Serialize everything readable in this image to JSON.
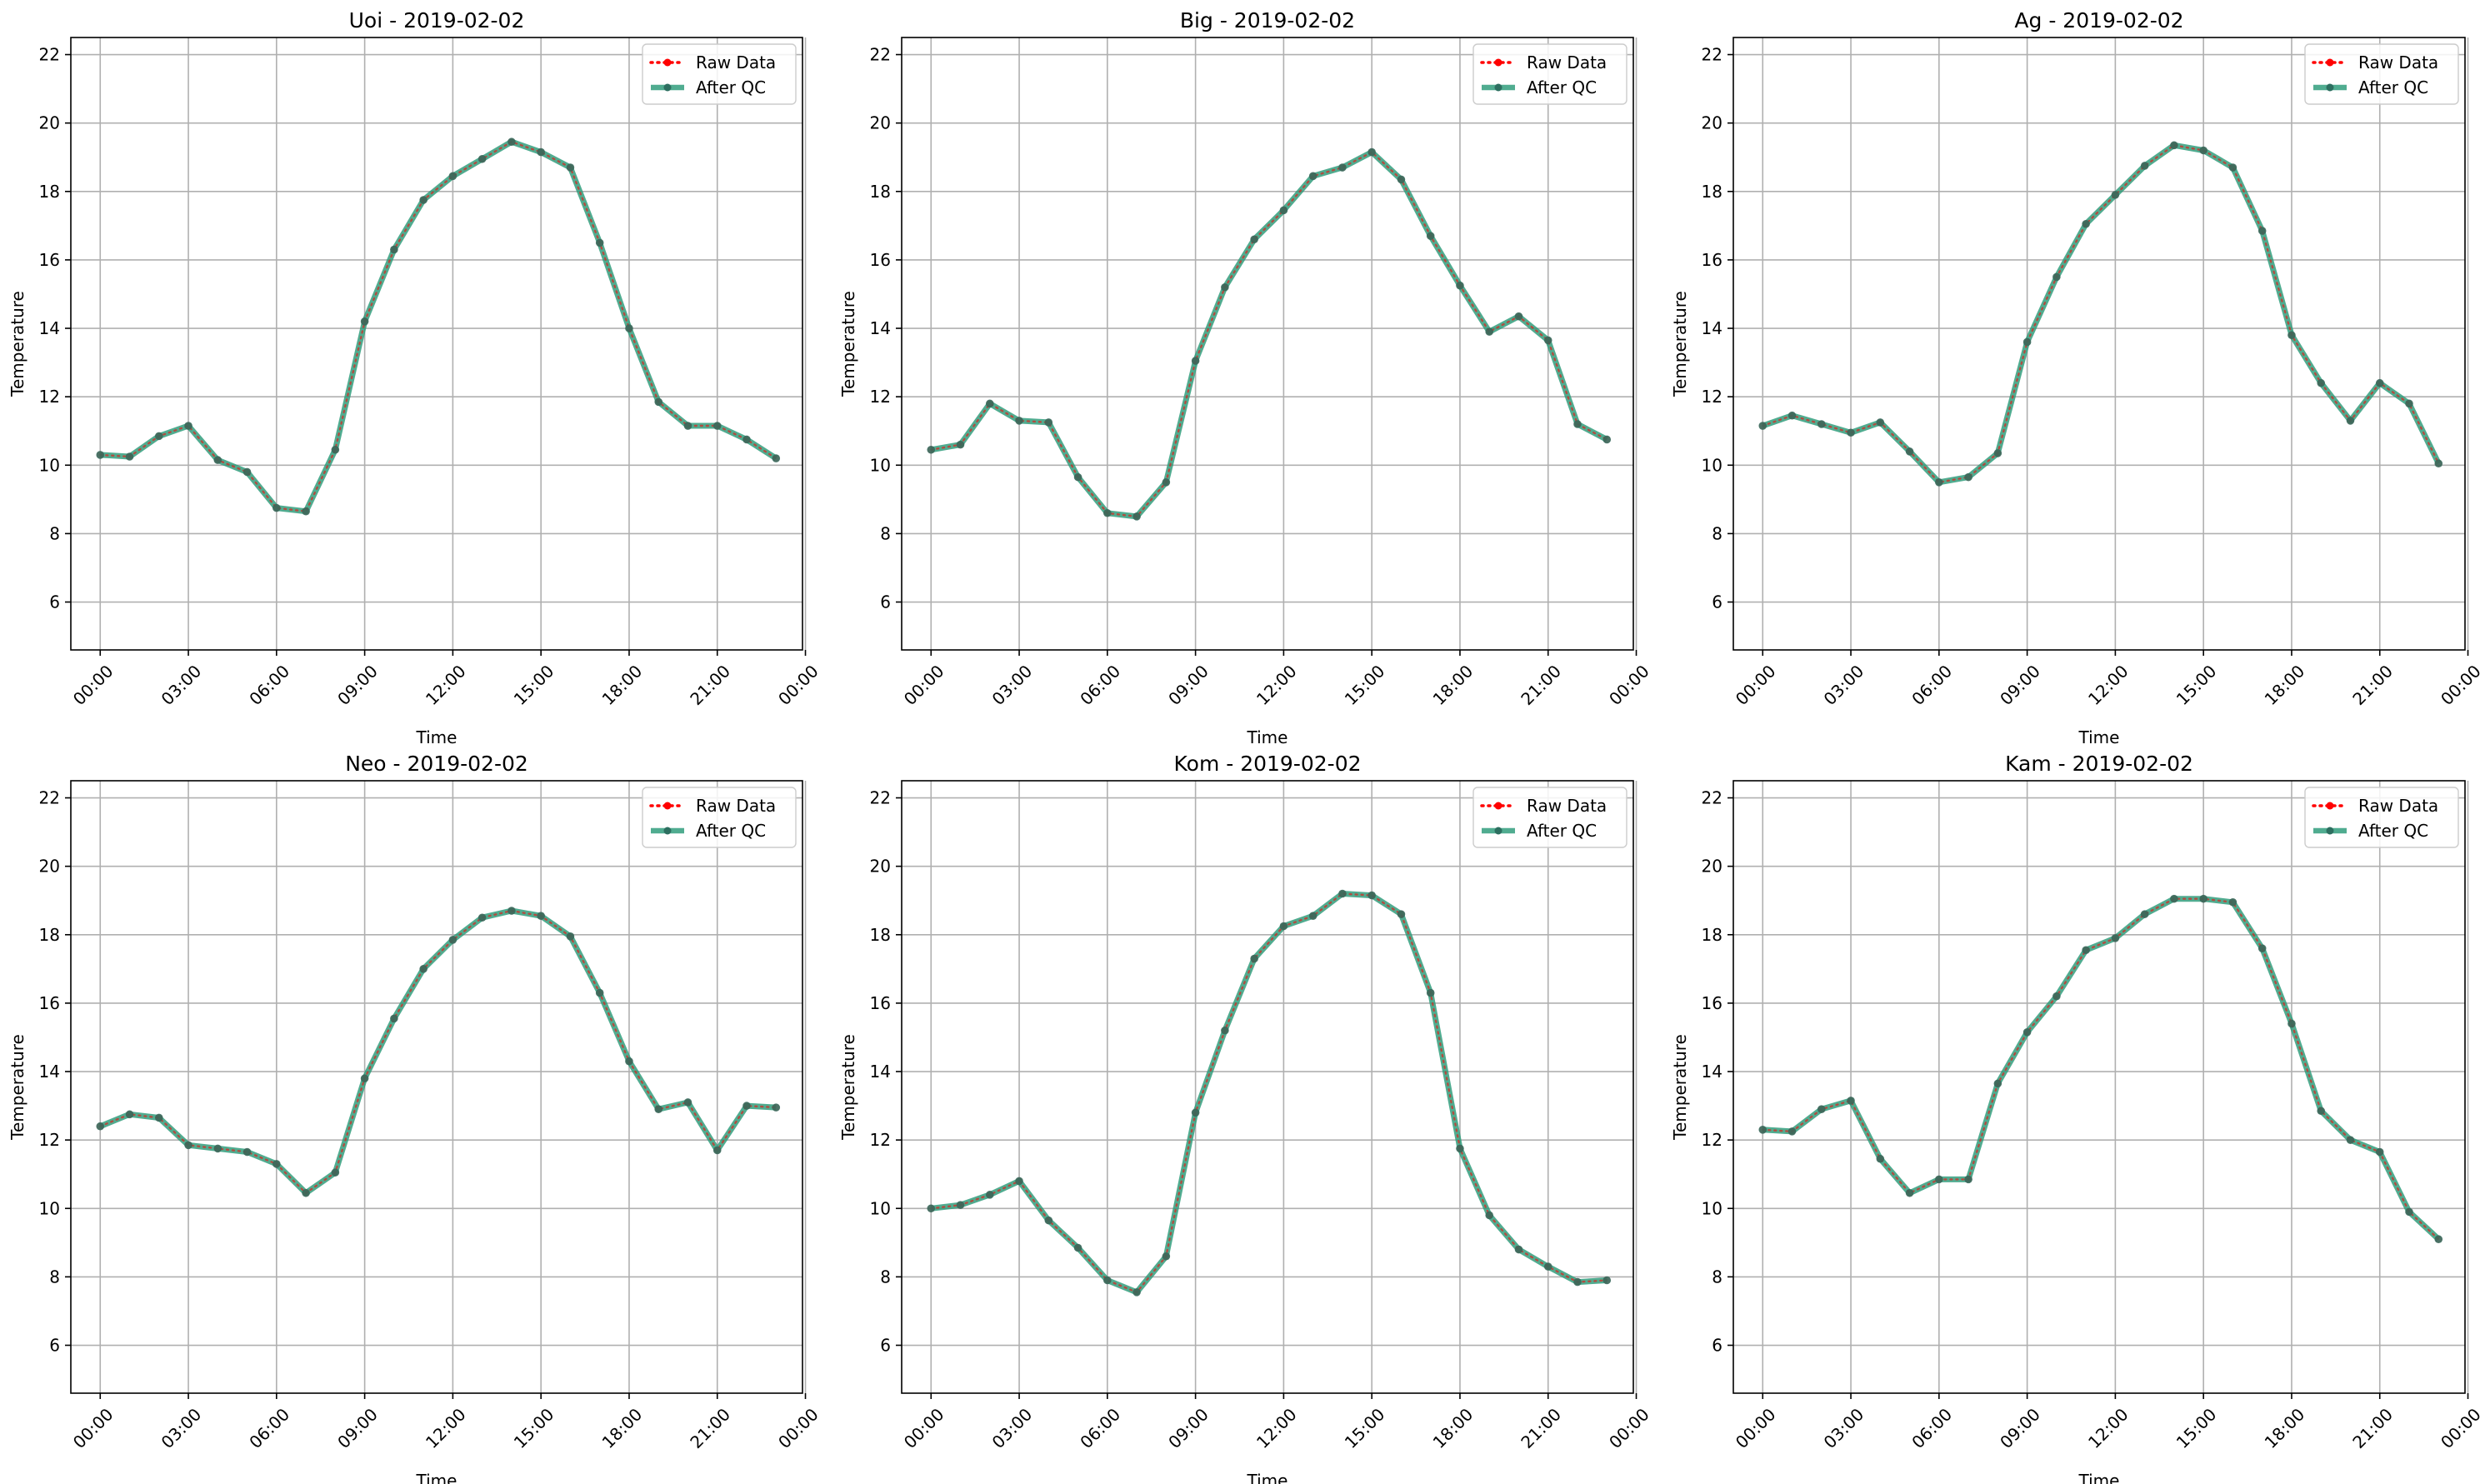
{
  "chart_data": [
    {
      "type": "line",
      "title": "Uoi - 2019-02-02",
      "xlabel": "Time",
      "ylabel": "Temperature",
      "ylim": [
        4.6,
        22.5
      ],
      "yticks": [
        "6",
        "8",
        "10",
        "12",
        "14",
        "16",
        "18",
        "20",
        "22"
      ],
      "xticks": [
        "00:00",
        "03:00",
        "06:00",
        "09:00",
        "12:00",
        "15:00",
        "18:00",
        "21:00",
        "00:00"
      ],
      "grid": true,
      "legend": "top-right",
      "legend_entries": [
        "Raw Data",
        "After QC"
      ],
      "x_hours": [
        0,
        1,
        2,
        3,
        4,
        5,
        6,
        7,
        8,
        9,
        10,
        11,
        12,
        13,
        14,
        15,
        16,
        17,
        18,
        19,
        20,
        21,
        22,
        23
      ],
      "series": [
        {
          "name": "Raw Data",
          "values": [
            10.3,
            10.25,
            10.85,
            11.15,
            10.15,
            9.8,
            8.75,
            8.65,
            10.45,
            14.2,
            16.3,
            17.75,
            18.45,
            18.95,
            19.45,
            19.15,
            18.7,
            16.5,
            14.0,
            11.85,
            11.15,
            11.15,
            10.75,
            10.2
          ]
        },
        {
          "name": "After QC",
          "values": [
            10.3,
            10.25,
            10.85,
            11.15,
            10.15,
            9.8,
            8.75,
            8.65,
            10.45,
            14.2,
            16.3,
            17.75,
            18.45,
            18.95,
            19.45,
            19.15,
            18.7,
            16.5,
            14.0,
            11.85,
            11.15,
            11.15,
            10.75,
            10.2
          ]
        }
      ]
    },
    {
      "type": "line",
      "title": "Big - 2019-02-02",
      "xlabel": "Time",
      "ylabel": "Temperature",
      "ylim": [
        4.6,
        22.5
      ],
      "yticks": [
        "6",
        "8",
        "10",
        "12",
        "14",
        "16",
        "18",
        "20",
        "22"
      ],
      "xticks": [
        "00:00",
        "03:00",
        "06:00",
        "09:00",
        "12:00",
        "15:00",
        "18:00",
        "21:00",
        "00:00"
      ],
      "grid": true,
      "legend": "top-right",
      "legend_entries": [
        "Raw Data",
        "After QC"
      ],
      "x_hours": [
        0,
        1,
        2,
        3,
        4,
        5,
        6,
        7,
        8,
        9,
        10,
        11,
        12,
        13,
        14,
        15,
        16,
        17,
        18,
        19,
        20,
        21,
        22,
        23
      ],
      "series": [
        {
          "name": "Raw Data",
          "values": [
            10.45,
            10.6,
            11.8,
            11.3,
            11.25,
            9.65,
            8.6,
            8.5,
            9.5,
            13.05,
            15.2,
            16.6,
            17.45,
            18.45,
            18.7,
            19.15,
            18.35,
            16.7,
            15.25,
            13.9,
            14.35,
            13.65,
            11.2,
            10.75
          ]
        },
        {
          "name": "After QC",
          "values": [
            10.45,
            10.6,
            11.8,
            11.3,
            11.25,
            9.65,
            8.6,
            8.5,
            9.5,
            13.05,
            15.2,
            16.6,
            17.45,
            18.45,
            18.7,
            19.15,
            18.35,
            16.7,
            15.25,
            13.9,
            14.35,
            13.65,
            11.2,
            10.75
          ]
        }
      ]
    },
    {
      "type": "line",
      "title": "Ag - 2019-02-02",
      "xlabel": "Time",
      "ylabel": "Temperature",
      "ylim": [
        4.6,
        22.5
      ],
      "yticks": [
        "6",
        "8",
        "10",
        "12",
        "14",
        "16",
        "18",
        "20",
        "22"
      ],
      "xticks": [
        "00:00",
        "03:00",
        "06:00",
        "09:00",
        "12:00",
        "15:00",
        "18:00",
        "21:00",
        "00:00"
      ],
      "grid": true,
      "legend": "top-right",
      "legend_entries": [
        "Raw Data",
        "After QC"
      ],
      "x_hours": [
        0,
        1,
        2,
        3,
        4,
        5,
        6,
        7,
        8,
        9,
        10,
        11,
        12,
        13,
        14,
        15,
        16,
        17,
        18,
        19,
        20,
        21,
        22,
        23
      ],
      "series": [
        {
          "name": "Raw Data",
          "values": [
            11.15,
            11.45,
            11.2,
            10.95,
            11.25,
            10.4,
            9.5,
            9.65,
            10.35,
            13.6,
            15.5,
            17.05,
            17.9,
            18.75,
            19.35,
            19.2,
            18.7,
            16.85,
            13.8,
            12.4,
            11.3,
            12.4,
            11.8,
            10.05
          ]
        },
        {
          "name": "After QC",
          "values": [
            11.15,
            11.45,
            11.2,
            10.95,
            11.25,
            10.4,
            9.5,
            9.65,
            10.35,
            13.6,
            15.5,
            17.05,
            17.9,
            18.75,
            19.35,
            19.2,
            18.7,
            16.85,
            13.8,
            12.4,
            11.3,
            12.4,
            11.8,
            10.05
          ]
        }
      ]
    },
    {
      "type": "line",
      "title": "Neo - 2019-02-02",
      "xlabel": "Time",
      "ylabel": "Temperature",
      "ylim": [
        4.6,
        22.5
      ],
      "yticks": [
        "6",
        "8",
        "10",
        "12",
        "14",
        "16",
        "18",
        "20",
        "22"
      ],
      "xticks": [
        "00:00",
        "03:00",
        "06:00",
        "09:00",
        "12:00",
        "15:00",
        "18:00",
        "21:00",
        "00:00"
      ],
      "grid": true,
      "legend": "top-right",
      "legend_entries": [
        "Raw Data",
        "After QC"
      ],
      "x_hours": [
        0,
        1,
        2,
        3,
        4,
        5,
        6,
        7,
        8,
        9,
        10,
        11,
        12,
        13,
        14,
        15,
        16,
        17,
        18,
        19,
        20,
        21,
        22,
        23
      ],
      "series": [
        {
          "name": "Raw Data",
          "values": [
            12.4,
            12.75,
            12.65,
            11.85,
            11.75,
            11.65,
            11.3,
            10.45,
            11.05,
            13.8,
            15.55,
            17.0,
            17.85,
            18.5,
            18.7,
            18.55,
            17.95,
            16.3,
            14.3,
            12.9,
            13.1,
            11.7,
            13.0,
            12.95
          ]
        },
        {
          "name": "After QC",
          "values": [
            12.4,
            12.75,
            12.65,
            11.85,
            11.75,
            11.65,
            11.3,
            10.45,
            11.05,
            13.8,
            15.55,
            17.0,
            17.85,
            18.5,
            18.7,
            18.55,
            17.95,
            16.3,
            14.3,
            12.9,
            13.1,
            11.7,
            13.0,
            12.95
          ]
        }
      ]
    },
    {
      "type": "line",
      "title": "Kom - 2019-02-02",
      "xlabel": "Time",
      "ylabel": "Temperature",
      "ylim": [
        4.6,
        22.5
      ],
      "yticks": [
        "6",
        "8",
        "10",
        "12",
        "14",
        "16",
        "18",
        "20",
        "22"
      ],
      "xticks": [
        "00:00",
        "03:00",
        "06:00",
        "09:00",
        "12:00",
        "15:00",
        "18:00",
        "21:00",
        "00:00"
      ],
      "grid": true,
      "legend": "top-right",
      "legend_entries": [
        "Raw Data",
        "After QC"
      ],
      "x_hours": [
        0,
        1,
        2,
        3,
        4,
        5,
        6,
        7,
        8,
        9,
        10,
        11,
        12,
        13,
        14,
        15,
        16,
        17,
        18,
        19,
        20,
        21,
        22,
        23
      ],
      "series": [
        {
          "name": "Raw Data",
          "values": [
            10.0,
            10.1,
            10.4,
            10.8,
            9.65,
            8.85,
            7.9,
            7.55,
            8.6,
            12.8,
            15.2,
            17.3,
            18.25,
            18.55,
            19.2,
            19.15,
            18.6,
            16.3,
            11.75,
            9.8,
            8.8,
            8.3,
            7.85,
            7.9
          ]
        },
        {
          "name": "After QC",
          "values": [
            10.0,
            10.1,
            10.4,
            10.8,
            9.65,
            8.85,
            7.9,
            7.55,
            8.6,
            12.8,
            15.2,
            17.3,
            18.25,
            18.55,
            19.2,
            19.15,
            18.6,
            16.3,
            11.75,
            9.8,
            8.8,
            8.3,
            7.85,
            7.9
          ]
        }
      ]
    },
    {
      "type": "line",
      "title": "Kam - 2019-02-02",
      "xlabel": "Time",
      "ylabel": "Temperature",
      "ylim": [
        4.6,
        22.5
      ],
      "yticks": [
        "6",
        "8",
        "10",
        "12",
        "14",
        "16",
        "18",
        "20",
        "22"
      ],
      "xticks": [
        "00:00",
        "03:00",
        "06:00",
        "09:00",
        "12:00",
        "15:00",
        "18:00",
        "21:00",
        "00:00"
      ],
      "grid": true,
      "legend": "top-right",
      "legend_entries": [
        "Raw Data",
        "After QC"
      ],
      "x_hours": [
        0,
        1,
        2,
        3,
        4,
        5,
        6,
        7,
        8,
        9,
        10,
        11,
        12,
        13,
        14,
        15,
        16,
        17,
        18,
        19,
        20,
        21,
        22,
        23
      ],
      "series": [
        {
          "name": "Raw Data",
          "values": [
            12.3,
            12.25,
            12.9,
            13.15,
            11.45,
            10.45,
            10.85,
            10.85,
            13.65,
            15.15,
            16.2,
            17.55,
            17.9,
            18.6,
            19.05,
            19.05,
            18.95,
            17.6,
            15.4,
            12.85,
            12.0,
            11.65,
            9.9,
            9.1
          ]
        },
        {
          "name": "After QC",
          "values": [
            12.3,
            12.25,
            12.9,
            13.15,
            11.45,
            10.45,
            10.85,
            10.85,
            13.65,
            15.15,
            16.2,
            17.55,
            17.9,
            18.6,
            19.05,
            19.05,
            18.95,
            17.6,
            15.4,
            12.85,
            12.0,
            11.65,
            9.9,
            9.1
          ]
        }
      ]
    }
  ],
  "colors": {
    "raw": "#ff0000",
    "qc": "#2a9a78",
    "grid": "#b0b0b0",
    "axis": "#000000"
  }
}
